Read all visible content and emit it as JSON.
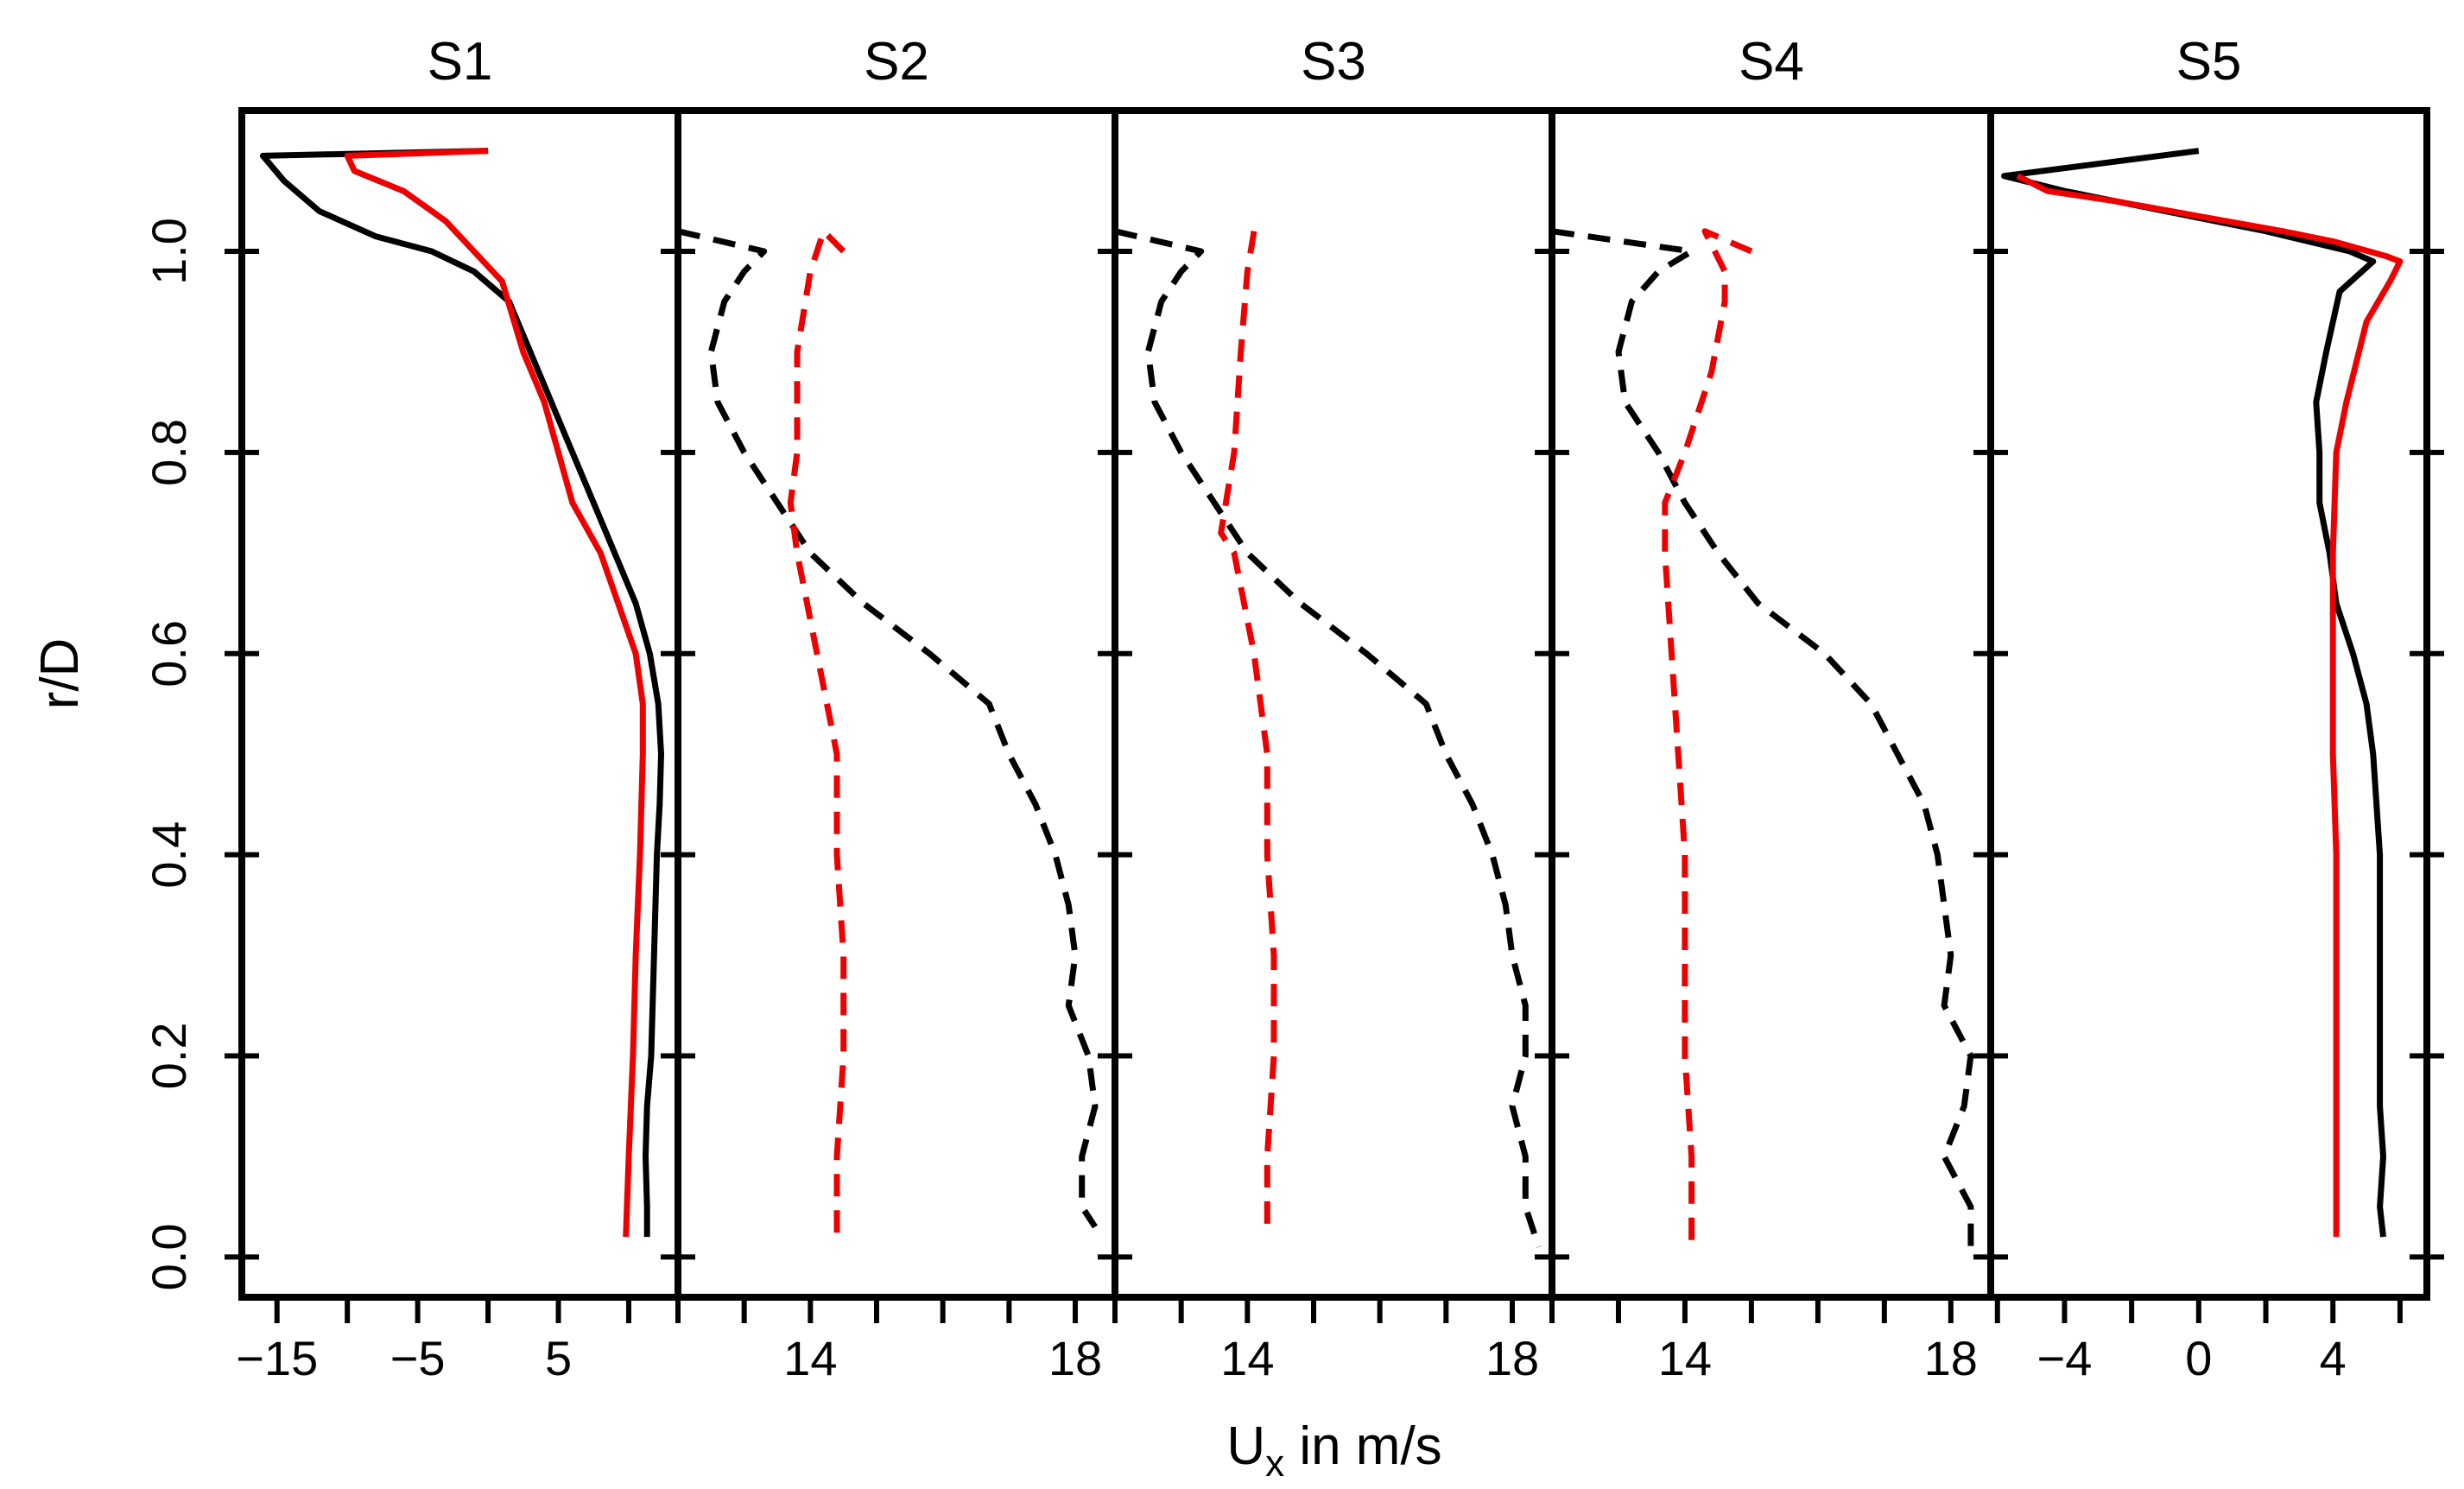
{
  "chart_data": {
    "type": "line",
    "ylabel": "r/D",
    "xlabel_base": "U",
    "xlabel_sub": "x",
    "xlabel_rest": " in m/s",
    "ylim": [
      -0.04,
      1.14
    ],
    "y_ticks": [
      0.0,
      0.2,
      0.4,
      0.6,
      0.8,
      1.0
    ],
    "y_tick_labels": [
      "0.0",
      "0.2",
      "0.4",
      "0.6",
      "0.8",
      "1.0"
    ],
    "colors": {
      "black": "#000000",
      "red": "#ee0000"
    },
    "panels": [
      {
        "title": "S1",
        "xlim": [
          -17.5,
          13.5
        ],
        "x_ticks": [
          -15,
          -10,
          -5,
          0,
          5,
          10
        ],
        "x_labels": [
          "−15",
          "",
          "−5",
          "",
          "5",
          ""
        ],
        "series": [
          {
            "name": "black solid",
            "color": "black",
            "dashed": false,
            "points": [
              [
                0,
                1.1
              ],
              [
                -16,
                1.095
              ],
              [
                -14.5,
                1.07
              ],
              [
                -12,
                1.04
              ],
              [
                -8,
                1.015
              ],
              [
                -4,
                1.0
              ],
              [
                -1,
                0.98
              ],
              [
                1.5,
                0.95
              ],
              [
                3,
                0.9
              ],
              [
                4.5,
                0.85
              ],
              [
                6,
                0.8
              ],
              [
                7.5,
                0.75
              ],
              [
                9,
                0.7
              ],
              [
                10.5,
                0.65
              ],
              [
                11.5,
                0.6
              ],
              [
                12.1,
                0.55
              ],
              [
                12.3,
                0.5
              ],
              [
                12.2,
                0.45
              ],
              [
                12,
                0.4
              ],
              [
                11.8,
                0.3
              ],
              [
                11.6,
                0.2
              ],
              [
                11.3,
                0.15
              ],
              [
                11.2,
                0.1
              ],
              [
                11.3,
                0.05
              ],
              [
                11.3,
                0.02
              ]
            ]
          },
          {
            "name": "red solid",
            "color": "red",
            "dashed": false,
            "points": [
              [
                0,
                1.1
              ],
              [
                -10,
                1.095
              ],
              [
                -9.5,
                1.08
              ],
              [
                -6,
                1.06
              ],
              [
                -3,
                1.03
              ],
              [
                -1,
                1.0
              ],
              [
                1,
                0.97
              ],
              [
                2.5,
                0.9
              ],
              [
                4,
                0.85
              ],
              [
                6,
                0.75
              ],
              [
                8,
                0.7
              ],
              [
                10.5,
                0.6
              ],
              [
                11,
                0.55
              ],
              [
                11,
                0.5
              ],
              [
                10.8,
                0.4
              ],
              [
                10.5,
                0.3
              ],
              [
                10.3,
                0.2
              ],
              [
                10,
                0.1
              ],
              [
                9.8,
                0.02
              ]
            ]
          }
        ]
      },
      {
        "title": "S2",
        "xlim": [
          12.0,
          18.6
        ],
        "x_ticks": [
          12,
          13,
          14,
          15,
          16,
          17,
          18
        ],
        "x_labels": [
          "",
          "",
          "14",
          "",
          "",
          "",
          "18"
        ],
        "series": [
          {
            "name": "black dashed",
            "color": "black",
            "dashed": false,
            "points": [
              [
                12.0,
                1.02
              ],
              [
                13.3,
                1.0
              ],
              [
                13.0,
                0.98
              ],
              [
                12.7,
                0.95
              ],
              [
                12.5,
                0.9
              ],
              [
                12.6,
                0.85
              ],
              [
                13.0,
                0.8
              ],
              [
                13.5,
                0.75
              ],
              [
                14.0,
                0.7
              ],
              [
                14.8,
                0.65
              ],
              [
                15.8,
                0.6
              ],
              [
                16.7,
                0.55
              ],
              [
                17.0,
                0.5
              ],
              [
                17.4,
                0.45
              ],
              [
                17.7,
                0.4
              ],
              [
                17.9,
                0.35
              ],
              [
                18.0,
                0.3
              ],
              [
                17.9,
                0.25
              ],
              [
                18.2,
                0.2
              ],
              [
                18.3,
                0.15
              ],
              [
                18.1,
                0.1
              ],
              [
                18.1,
                0.05
              ],
              [
                18.3,
                0.03
              ]
            ]
          },
          {
            "name": "red dashed",
            "color": "red",
            "dashed": false,
            "points": [
              [
                14.5,
                1.0
              ],
              [
                14.2,
                1.02
              ],
              [
                14.0,
                0.98
              ],
              [
                13.8,
                0.9
              ],
              [
                13.8,
                0.8
              ],
              [
                13.7,
                0.75
              ],
              [
                13.8,
                0.7
              ],
              [
                14.1,
                0.6
              ],
              [
                14.4,
                0.5
              ],
              [
                14.4,
                0.4
              ],
              [
                14.5,
                0.3
              ],
              [
                14.5,
                0.2
              ],
              [
                14.4,
                0.1
              ],
              [
                14.4,
                0.02
              ]
            ]
          }
        ]
      },
      {
        "title": "S3",
        "xlim": [
          12.0,
          18.6
        ],
        "x_ticks": [
          12,
          13,
          14,
          15,
          16,
          17,
          18
        ],
        "x_labels": [
          "",
          "",
          "14",
          "",
          "",
          "",
          "18"
        ],
        "series": [
          {
            "name": "black dashed",
            "color": "black",
            "dashed": false,
            "points": [
              [
                12.0,
                1.02
              ],
              [
                13.3,
                1.0
              ],
              [
                13.0,
                0.98
              ],
              [
                12.7,
                0.95
              ],
              [
                12.5,
                0.9
              ],
              [
                12.6,
                0.85
              ],
              [
                13.0,
                0.8
              ],
              [
                13.5,
                0.75
              ],
              [
                14.0,
                0.7
              ],
              [
                14.8,
                0.65
              ],
              [
                15.8,
                0.6
              ],
              [
                16.7,
                0.55
              ],
              [
                17.0,
                0.5
              ],
              [
                17.4,
                0.45
              ],
              [
                17.7,
                0.4
              ],
              [
                17.9,
                0.35
              ],
              [
                18.0,
                0.3
              ],
              [
                18.2,
                0.25
              ],
              [
                18.2,
                0.2
              ],
              [
                18.0,
                0.15
              ],
              [
                18.2,
                0.1
              ],
              [
                18.2,
                0.05
              ],
              [
                18.4,
                0.01
              ]
            ]
          },
          {
            "name": "red dashed",
            "color": "red",
            "dashed": false,
            "points": [
              [
                14.1,
                1.02
              ],
              [
                14.0,
                0.98
              ],
              [
                13.9,
                0.9
              ],
              [
                13.8,
                0.8
              ],
              [
                13.6,
                0.72
              ],
              [
                13.8,
                0.7
              ],
              [
                14.1,
                0.6
              ],
              [
                14.3,
                0.5
              ],
              [
                14.3,
                0.4
              ],
              [
                14.4,
                0.3
              ],
              [
                14.4,
                0.2
              ],
              [
                14.3,
                0.1
              ],
              [
                14.3,
                0.02
              ]
            ]
          }
        ]
      },
      {
        "title": "S4",
        "xlim": [
          12.0,
          18.6
        ],
        "x_ticks": [
          12,
          13,
          14,
          15,
          16,
          17,
          18
        ],
        "x_labels": [
          "",
          "",
          "14",
          "",
          "",
          "",
          "18"
        ],
        "series": [
          {
            "name": "black dashed",
            "color": "black",
            "dashed": false,
            "points": [
              [
                12.0,
                1.02
              ],
              [
                14.1,
                1.0
              ],
              [
                13.6,
                0.98
              ],
              [
                13.2,
                0.95
              ],
              [
                13.0,
                0.9
              ],
              [
                13.1,
                0.85
              ],
              [
                13.6,
                0.8
              ],
              [
                14.0,
                0.75
              ],
              [
                14.5,
                0.7
              ],
              [
                15.1,
                0.65
              ],
              [
                16.1,
                0.6
              ],
              [
                16.8,
                0.55
              ],
              [
                17.2,
                0.5
              ],
              [
                17.6,
                0.45
              ],
              [
                17.8,
                0.4
              ],
              [
                17.9,
                0.35
              ],
              [
                18.0,
                0.3
              ],
              [
                17.9,
                0.25
              ],
              [
                18.3,
                0.2
              ],
              [
                18.2,
                0.15
              ],
              [
                17.9,
                0.1
              ],
              [
                18.3,
                0.05
              ],
              [
                18.3,
                0.01
              ]
            ]
          },
          {
            "name": "red dashed",
            "color": "red",
            "dashed": false,
            "points": [
              [
                15.0,
                1.0
              ],
              [
                14.3,
                1.02
              ],
              [
                14.6,
                0.98
              ],
              [
                14.6,
                0.95
              ],
              [
                14.4,
                0.88
              ],
              [
                14.0,
                0.8
              ],
              [
                13.7,
                0.75
              ],
              [
                13.7,
                0.7
              ],
              [
                13.8,
                0.6
              ],
              [
                13.9,
                0.5
              ],
              [
                14.0,
                0.4
              ],
              [
                14.0,
                0.3
              ],
              [
                14.0,
                0.2
              ],
              [
                14.1,
                0.1
              ],
              [
                14.1,
                0.01
              ]
            ]
          }
        ]
      },
      {
        "title": "S5",
        "xlim": [
          -6.2,
          6.8
        ],
        "x_ticks": [
          -6,
          -4,
          -2,
          0,
          2,
          4,
          6
        ],
        "x_labels": [
          "",
          "−4",
          "",
          "0",
          "",
          "4",
          ""
        ],
        "series": [
          {
            "name": "black solid",
            "color": "black",
            "dashed": false,
            "points": [
              [
                0,
                1.1
              ],
              [
                -5.8,
                1.075
              ],
              [
                -4.0,
                1.06
              ],
              [
                -1.0,
                1.04
              ],
              [
                2,
                1.02
              ],
              [
                4.5,
                1.0
              ],
              [
                5.2,
                0.99
              ],
              [
                4.2,
                0.96
              ],
              [
                3.8,
                0.9
              ],
              [
                3.5,
                0.85
              ],
              [
                3.6,
                0.8
              ],
              [
                3.6,
                0.75
              ],
              [
                3.9,
                0.7
              ],
              [
                4.1,
                0.65
              ],
              [
                4.6,
                0.6
              ],
              [
                5.0,
                0.55
              ],
              [
                5.2,
                0.5
              ],
              [
                5.3,
                0.45
              ],
              [
                5.4,
                0.4
              ],
              [
                5.4,
                0.3
              ],
              [
                5.4,
                0.2
              ],
              [
                5.4,
                0.15
              ],
              [
                5.5,
                0.1
              ],
              [
                5.4,
                0.05
              ],
              [
                5.5,
                0.02
              ]
            ]
          },
          {
            "name": "red solid",
            "color": "red",
            "dashed": false,
            "points": [
              [
                -5.4,
                1.075
              ],
              [
                -4.5,
                1.06
              ],
              [
                -2.5,
                1.05
              ],
              [
                0,
                1.035
              ],
              [
                2.5,
                1.02
              ],
              [
                4.0,
                1.01
              ],
              [
                5.6,
                0.995
              ],
              [
                6.0,
                0.99
              ],
              [
                5.7,
                0.97
              ],
              [
                5.0,
                0.93
              ],
              [
                4.4,
                0.85
              ],
              [
                4.1,
                0.8
              ],
              [
                4.0,
                0.7
              ],
              [
                4.0,
                0.6
              ],
              [
                4.0,
                0.5
              ],
              [
                4.1,
                0.4
              ],
              [
                4.1,
                0.3
              ],
              [
                4.1,
                0.2
              ],
              [
                4.1,
                0.1
              ],
              [
                4.1,
                0.02
              ]
            ]
          }
        ]
      }
    ]
  }
}
